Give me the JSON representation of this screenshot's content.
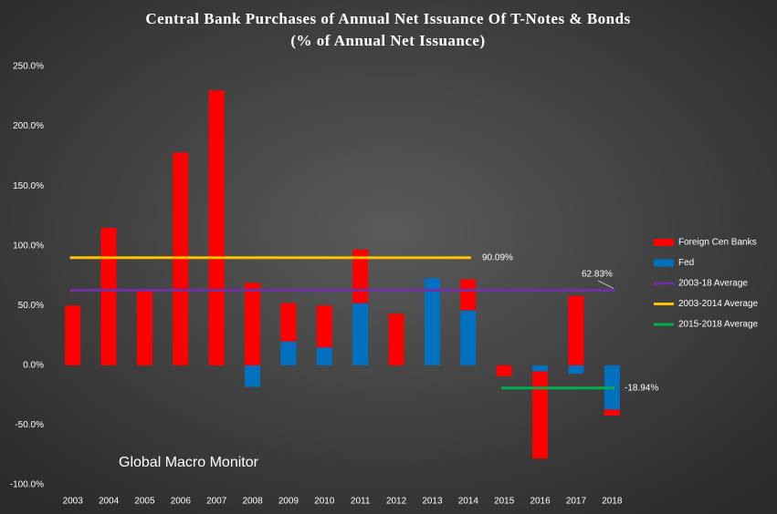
{
  "chart_data": {
    "type": "bar",
    "title": "Central Bank Purchases of Annual Net Issuance Of T-Notes & Bonds",
    "subtitle": "(% of Annual Net Issuance)",
    "annotation": "Global Macro Monitor",
    "stacked": true,
    "categories": [
      "2003",
      "2004",
      "2005",
      "2006",
      "2007",
      "2008",
      "2009",
      "2010",
      "2011",
      "2012",
      "2013",
      "2014",
      "2015",
      "2016",
      "2017",
      "2018"
    ],
    "series": [
      {
        "name": "Foreign Cen Banks",
        "color": "#ff0000",
        "values": [
          50,
          115,
          62,
          178,
          230,
          69,
          32,
          35,
          45,
          43,
          0,
          26,
          -9,
          -73,
          58,
          -5
        ]
      },
      {
        "name": "Fed",
        "color": "#0070c0",
        "values": [
          0,
          0,
          0,
          0,
          0,
          -18,
          20,
          15,
          52,
          0,
          73,
          46,
          0,
          -5,
          -7,
          -37
        ]
      }
    ],
    "averages": [
      {
        "name": "2003-18 Average",
        "color": "#7030a0",
        "value": 62.83,
        "value_label": "62.83%"
      },
      {
        "name": "2003-2014 Average",
        "color": "#ffc000",
        "value": 90.09,
        "value_label": "90.09%"
      },
      {
        "name": "2015-2018 Average",
        "color": "#00b050",
        "value": -18.94,
        "value_label": "-18.94%"
      }
    ],
    "ylim": [
      -100,
      250
    ],
    "yticks": [
      {
        "value": -100,
        "label": "-100.0%"
      },
      {
        "value": -50,
        "label": "-50.0%"
      },
      {
        "value": 0,
        "label": "0.0%"
      },
      {
        "value": 50,
        "label": "50.0%"
      },
      {
        "value": 100,
        "label": "100.0%"
      },
      {
        "value": 150,
        "label": "150.0%"
      },
      {
        "value": 200,
        "label": "200.0%"
      },
      {
        "value": 250,
        "label": "250.0%"
      }
    ],
    "grid": false,
    "legend": "right"
  }
}
